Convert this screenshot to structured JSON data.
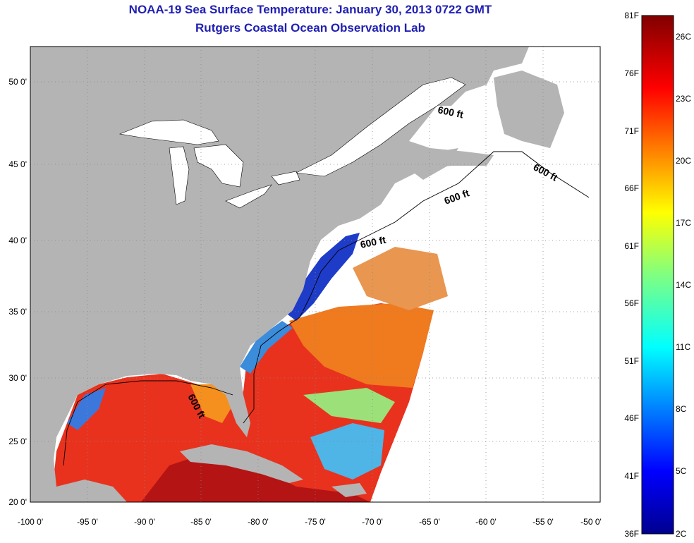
{
  "title_line1": "NOAA-19 Sea Surface Temperature:  January 30, 2013 0722 GMT",
  "title_line2": "Rutgers Coastal Ocean Observation Lab",
  "lat_labels": [
    "50 0'",
    "45 0'",
    "40 0'",
    "35 0'",
    "30 0'",
    "25 0'",
    "20 0'"
  ],
  "lon_labels": [
    "-100 0'",
    "-95 0'",
    "-90 0'",
    "-85 0'",
    "-80 0'",
    "-75 0'",
    "-70 0'",
    "-65 0'",
    "-60 0'",
    "-55 0'",
    "-50 0'"
  ],
  "contour_label": "600 ft",
  "colorbar": {
    "f_labels": [
      "81F",
      "76F",
      "71F",
      "66F",
      "61F",
      "56F",
      "51F",
      "46F",
      "41F",
      "36F"
    ],
    "c_labels": [
      "26C",
      "23C",
      "20C",
      "17C",
      "14C",
      "11C",
      "8C",
      "5C",
      "2C"
    ]
  },
  "colors": {
    "land": "#b4b4b4",
    "title": "#1f1fb4",
    "warm": "#e8321e",
    "orange": "#f07a1e",
    "cold": "#1e3cc8"
  }
}
